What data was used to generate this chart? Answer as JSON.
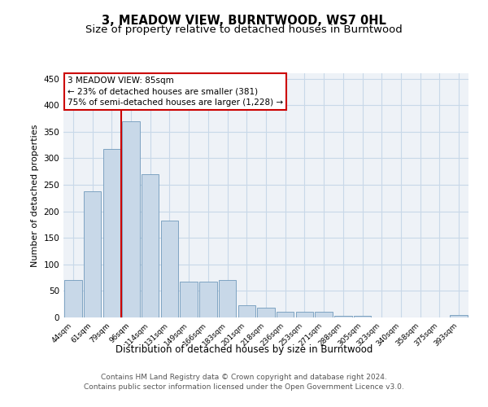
{
  "title": "3, MEADOW VIEW, BURNTWOOD, WS7 0HL",
  "subtitle": "Size of property relative to detached houses in Burntwood",
  "xlabel": "Distribution of detached houses by size in Burntwood",
  "ylabel": "Number of detached properties",
  "categories": [
    "44sqm",
    "61sqm",
    "79sqm",
    "96sqm",
    "114sqm",
    "131sqm",
    "149sqm",
    "166sqm",
    "183sqm",
    "201sqm",
    "218sqm",
    "236sqm",
    "253sqm",
    "271sqm",
    "288sqm",
    "305sqm",
    "323sqm",
    "340sqm",
    "358sqm",
    "375sqm",
    "393sqm"
  ],
  "values": [
    70,
    237,
    318,
    370,
    270,
    183,
    68,
    68,
    70,
    23,
    19,
    10,
    10,
    10,
    3,
    3,
    0,
    0,
    0,
    0,
    4
  ],
  "bar_color": "#c8d8e8",
  "bar_edge_color": "#7099bb",
  "property_line_color": "#cc0000",
  "annotation_text": "3 MEADOW VIEW: 85sqm\n← 23% of detached houses are smaller (381)\n75% of semi-detached houses are larger (1,228) →",
  "annotation_box_color": "#cc0000",
  "ylim": [
    0,
    460
  ],
  "yticks": [
    0,
    50,
    100,
    150,
    200,
    250,
    300,
    350,
    400,
    450
  ],
  "grid_color": "#c8d8e8",
  "background_color": "#eef2f7",
  "footnote": "Contains HM Land Registry data © Crown copyright and database right 2024.\nContains public sector information licensed under the Open Government Licence v3.0.",
  "title_fontsize": 10.5,
  "subtitle_fontsize": 9.5,
  "annotation_fontsize": 7.5,
  "footnote_fontsize": 6.5,
  "ylabel_fontsize": 8,
  "xlabel_fontsize": 8.5
}
